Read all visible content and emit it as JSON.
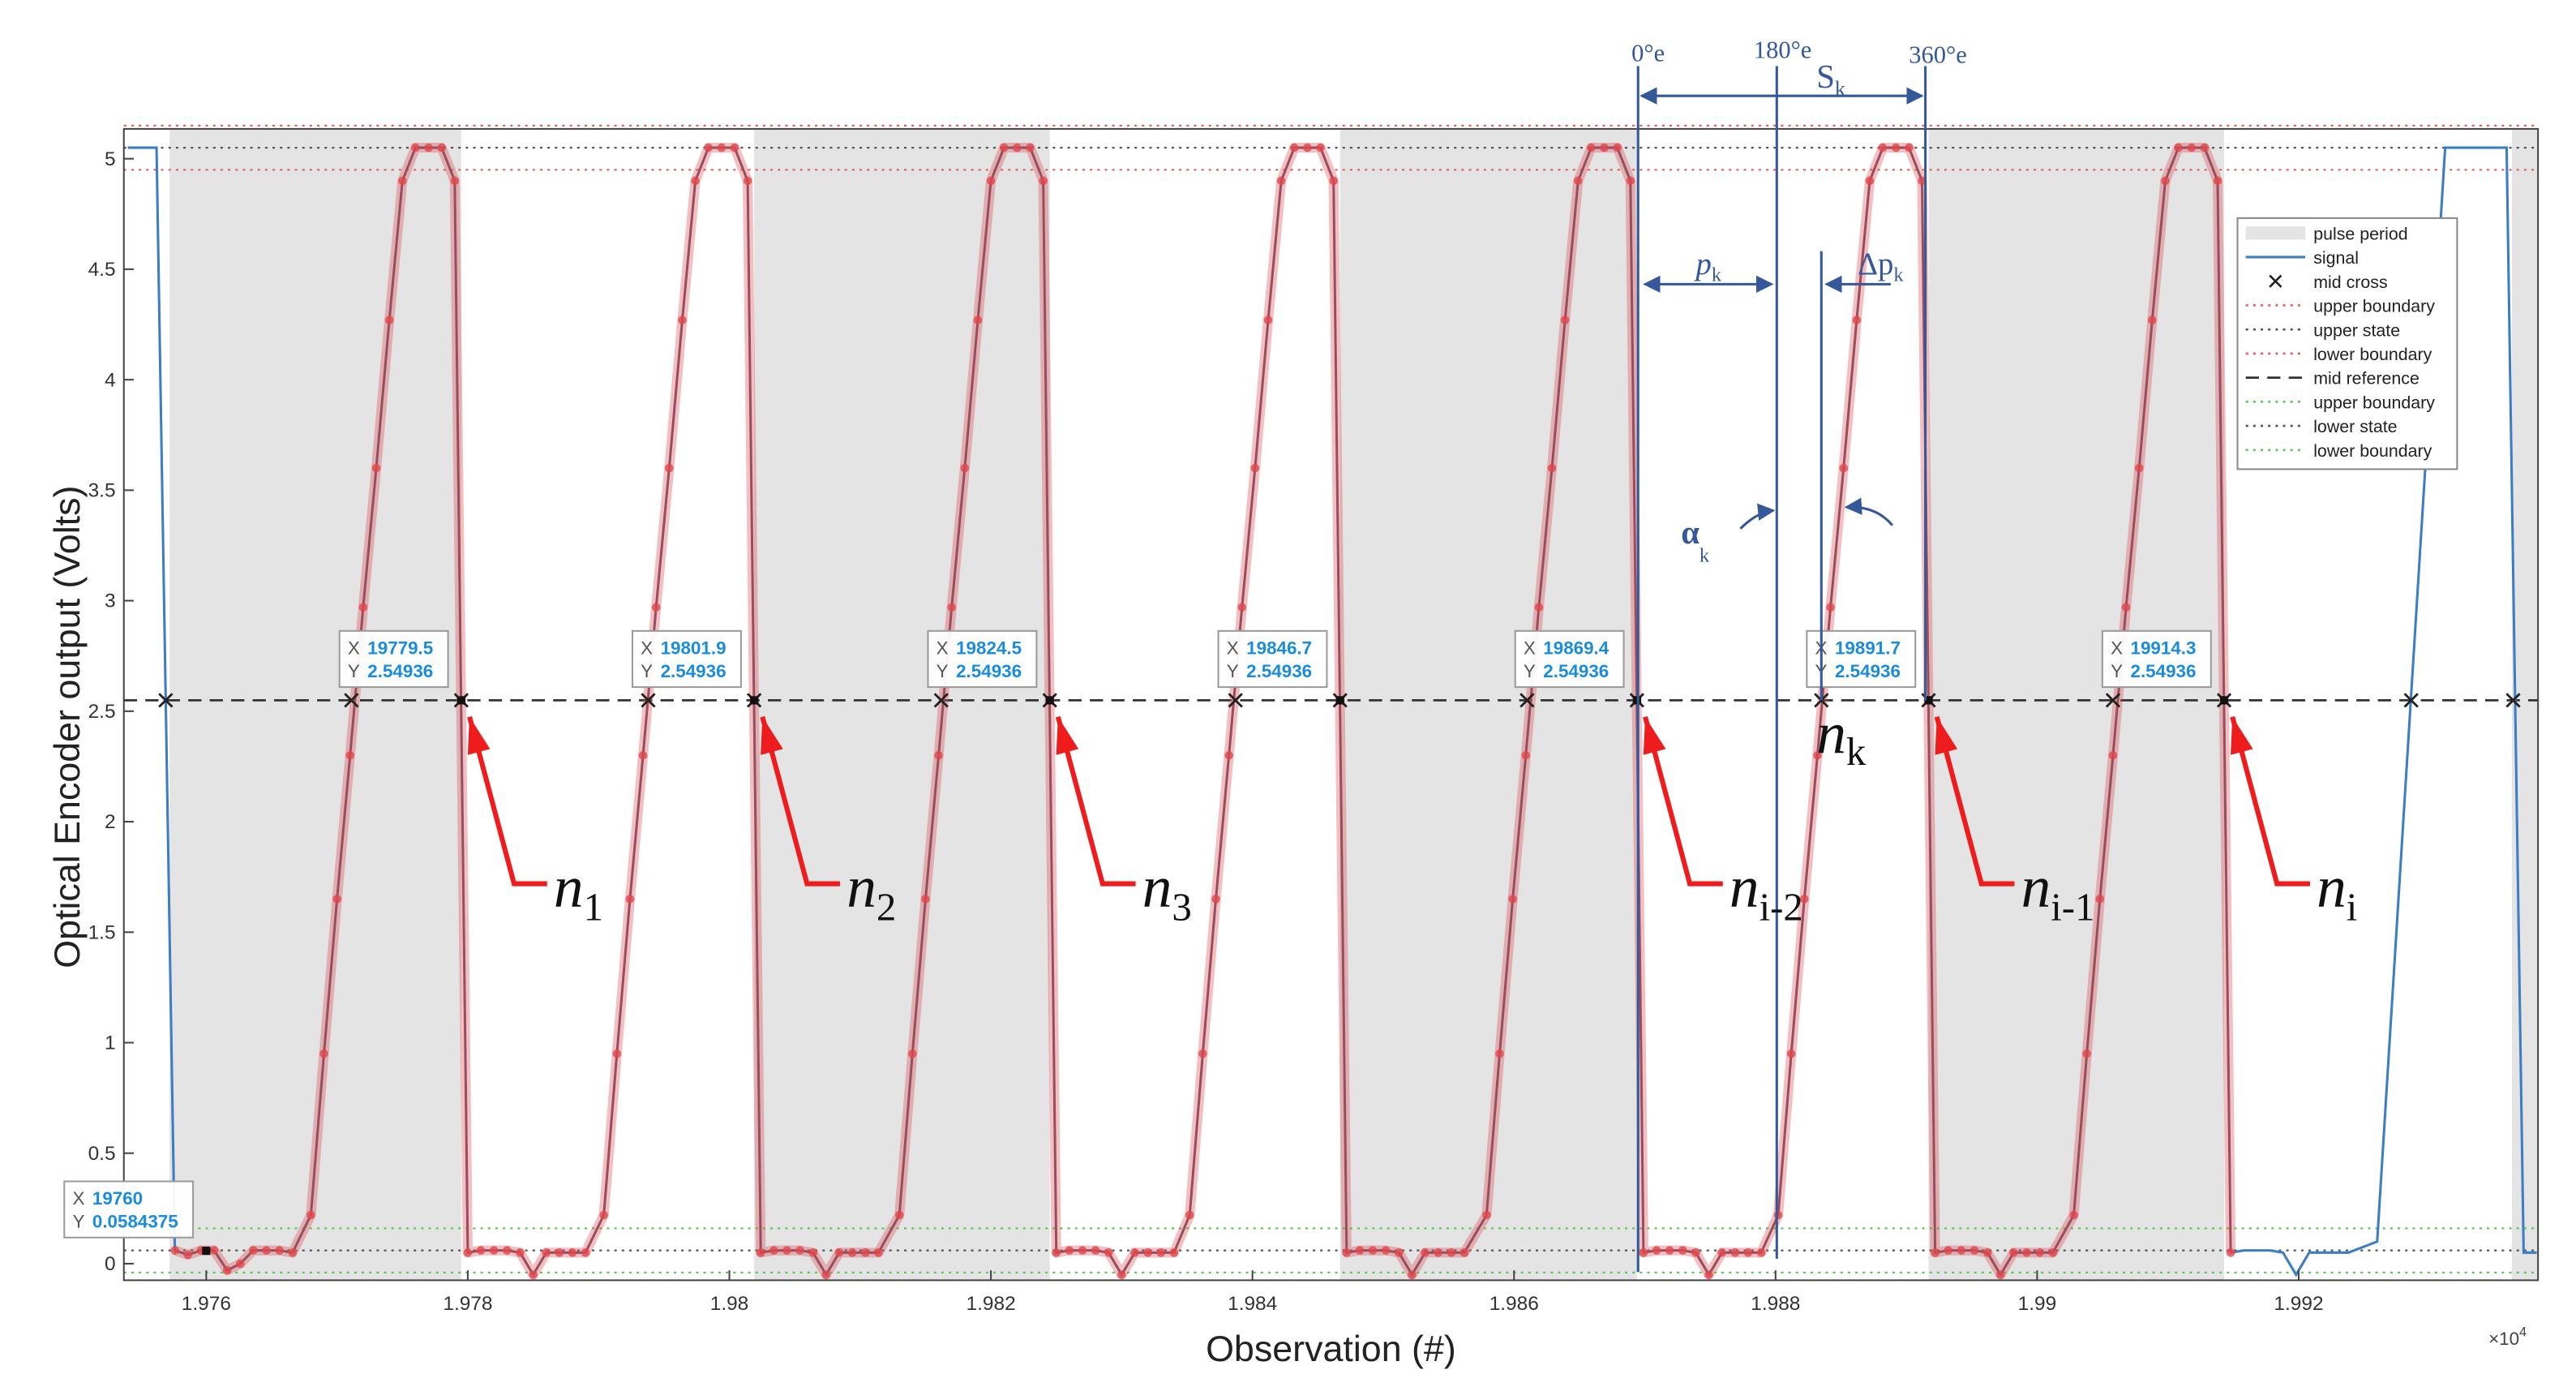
{
  "chart_data": {
    "type": "line",
    "x_label": "Observation (#)",
    "y_label": "Optical Encoder output (Volts)",
    "x_multiplier": {
      "base": "×10",
      "sup": "4"
    },
    "xlim": [
      19753.7,
      19938.3
    ],
    "ylim": [
      -0.075,
      5.135
    ],
    "xticks": [
      {
        "value": 19760,
        "label": "1.976"
      },
      {
        "value": 19780,
        "label": "1.978"
      },
      {
        "value": 19800,
        "label": "1.98"
      },
      {
        "value": 19820,
        "label": "1.982"
      },
      {
        "value": 19840,
        "label": "1.984"
      },
      {
        "value": 19860,
        "label": "1.986"
      },
      {
        "value": 19880,
        "label": "1.988"
      },
      {
        "value": 19900,
        "label": "1.99"
      },
      {
        "value": 19920,
        "label": "1.992"
      }
    ],
    "yticks": [
      0,
      0.5,
      1,
      1.5,
      2,
      2.5,
      3,
      3.5,
      4,
      4.5,
      5
    ],
    "grid": false,
    "legend": "upper right",
    "pulse_periods": {
      "name": "pulse period",
      "color": "#e4e4e4",
      "spans": [
        [
          19757.2,
          19779.5
        ],
        [
          19801.9,
          19824.5
        ],
        [
          19846.7,
          19869.4
        ],
        [
          19891.7,
          19914.3
        ],
        [
          19936.3,
          19938.3
        ]
      ]
    },
    "series": [
      {
        "name": "signal",
        "color": "#3c7dc4",
        "highlight_color": "#e0474c",
        "x": [
          19754.0,
          19756.2,
          19757.6,
          19758.6,
          19759.6,
          19760.6,
          19761.6,
          19762.6,
          19763.6,
          19764.6,
          19765.6,
          19766.6,
          19768,
          19769,
          19770,
          19771,
          19772,
          19773,
          19774,
          19775,
          19776,
          19777,
          19778,
          19779,
          19780,
          19781,
          19782,
          19783,
          19784,
          19785,
          19786,
          19787,
          19788,
          19789,
          19790.4,
          19791.4,
          19792.4,
          19793.4,
          19794.4,
          19795.4,
          19796.4,
          19797.4,
          19798.4,
          19799.4,
          19800.4,
          19801.4,
          19802.4,
          19803.4,
          19804.4,
          19805.4,
          19806.4,
          19807.4,
          19808.4,
          19809.4,
          19810.4,
          19811.4,
          19813,
          19814,
          19815,
          19816,
          19817,
          19818,
          19819,
          19820,
          19821,
          19822,
          19823,
          19824,
          19825,
          19826,
          19827,
          19828,
          19829,
          19830,
          19831,
          19832,
          19833,
          19834,
          19835.2,
          19836.2,
          19837.2,
          19838.2,
          19839.2,
          19840.2,
          19841.2,
          19842.2,
          19843.2,
          19844.2,
          19845.2,
          19846.2,
          19847.2,
          19848.2,
          19849.2,
          19850.2,
          19851.2,
          19852.2,
          19853.2,
          19854.2,
          19855.2,
          19856.2,
          19857.9,
          19858.9,
          19859.9,
          19860.9,
          19861.9,
          19862.9,
          19863.9,
          19864.9,
          19865.9,
          19866.9,
          19867.9,
          19868.9,
          19869.9,
          19870.9,
          19871.9,
          19872.9,
          19873.9,
          19874.9,
          19875.9,
          19876.9,
          19877.9,
          19878.9,
          19880.2,
          19881.2,
          19882.2,
          19883.2,
          19884.2,
          19885.2,
          19886.2,
          19887.2,
          19888.2,
          19889.2,
          19890.2,
          19891.2,
          19892.2,
          19893.2,
          19894.2,
          19895.2,
          19896.2,
          19897.2,
          19898.2,
          19899.2,
          19900.2,
          19901.2,
          19902.8,
          19903.8,
          19904.8,
          19905.8,
          19906.8,
          19907.8,
          19908.8,
          19909.8,
          19910.8,
          19911.8,
          19912.8,
          19913.8,
          19914.8,
          19915.8,
          19916.8,
          19917.8,
          19918.8,
          19919.8,
          19920.8,
          19921.8,
          19922.8,
          19923.8,
          19926.0,
          19931.2,
          19935.9,
          19937.2,
          19938.2
        ],
        "values": [
          5.05,
          5.05,
          0.06,
          0.04,
          0.06,
          0.06,
          -0.03,
          0.0,
          0.06,
          0.06,
          0.06,
          0.05,
          0.22,
          0.95,
          1.65,
          2.3,
          2.97,
          3.6,
          4.27,
          4.9,
          5.05,
          5.05,
          5.05,
          4.9,
          0.05,
          0.06,
          0.06,
          0.06,
          0.05,
          -0.05,
          0.05,
          0.05,
          0.05,
          0.05,
          0.22,
          0.95,
          1.65,
          2.3,
          2.97,
          3.6,
          4.27,
          4.9,
          5.05,
          5.05,
          5.05,
          4.9,
          0.05,
          0.06,
          0.06,
          0.06,
          0.05,
          -0.05,
          0.05,
          0.05,
          0.05,
          0.05,
          0.22,
          0.95,
          1.65,
          2.3,
          2.97,
          3.6,
          4.27,
          4.9,
          5.05,
          5.05,
          5.05,
          4.9,
          0.05,
          0.06,
          0.06,
          0.06,
          0.05,
          -0.05,
          0.05,
          0.05,
          0.05,
          0.05,
          0.22,
          0.95,
          1.65,
          2.3,
          2.97,
          3.6,
          4.27,
          4.9,
          5.05,
          5.05,
          5.05,
          4.9,
          0.05,
          0.06,
          0.06,
          0.06,
          0.05,
          -0.05,
          0.05,
          0.05,
          0.05,
          0.05,
          0.22,
          0.95,
          1.65,
          2.3,
          2.97,
          3.6,
          4.27,
          4.9,
          5.05,
          5.05,
          5.05,
          4.9,
          0.05,
          0.06,
          0.06,
          0.06,
          0.05,
          -0.05,
          0.05,
          0.05,
          0.05,
          0.05,
          0.22,
          0.95,
          1.65,
          2.3,
          2.97,
          3.6,
          4.27,
          4.9,
          5.05,
          5.05,
          5.05,
          4.9,
          0.05,
          0.06,
          0.06,
          0.06,
          0.05,
          -0.05,
          0.05,
          0.05,
          0.05,
          0.05,
          0.22,
          0.95,
          1.65,
          2.3,
          2.97,
          3.6,
          4.27,
          4.9,
          5.05,
          5.05,
          5.05,
          4.9,
          0.05,
          0.06,
          0.06,
          0.06,
          0.05,
          -0.05,
          0.05,
          0.05,
          0.05,
          0.05,
          0.1,
          5.05,
          5.05,
          0.05,
          0.05
        ]
      }
    ],
    "mid_crosses": {
      "name": "mid cross",
      "x": [
        19756.9,
        19771.1,
        19779.5,
        19793.8,
        19801.9,
        19816.2,
        19824.5,
        19838.7,
        19846.7,
        19861.0,
        19869.4,
        19883.5,
        19891.7,
        19905.8,
        19914.3,
        19928.6,
        19936.4
      ]
    },
    "reference_lines": [
      {
        "name": "upper boundary",
        "value": 5.15,
        "color": "#e06060",
        "dash": "dotted"
      },
      {
        "name": "upper state",
        "value": 5.05,
        "color": "#555555",
        "dash": "dotted"
      },
      {
        "name": "lower boundary",
        "value": 4.95,
        "color": "#e06060",
        "dash": "dotted"
      },
      {
        "name": "mid reference",
        "value": 2.54936,
        "color": "#333333",
        "dash": "dashed"
      },
      {
        "name": "upper boundary",
        "value": 0.16,
        "color": "#5cc85c",
        "dash": "dotted"
      },
      {
        "name": "lower state",
        "value": 0.06,
        "color": "#555555",
        "dash": "dotted"
      },
      {
        "name": "lower boundary",
        "value": -0.04,
        "color": "#5cc85c",
        "dash": "dotted"
      }
    ],
    "datatip_labels": [
      "X",
      "Y"
    ],
    "datatips": [
      {
        "x": 19760,
        "y": 0.0584375
      },
      {
        "x": 19779.5,
        "y": 2.54936
      },
      {
        "x": 19801.9,
        "y": 2.54936
      },
      {
        "x": 19824.5,
        "y": 2.54936
      },
      {
        "x": 19846.7,
        "y": 2.54936
      },
      {
        "x": 19869.4,
        "y": 2.54936
      },
      {
        "x": 19891.7,
        "y": 2.54936
      },
      {
        "x": 19914.3,
        "y": 2.54936
      }
    ],
    "crossing_labels": [
      {
        "base": "n",
        "sub": "1"
      },
      {
        "base": "n",
        "sub": "2"
      },
      {
        "base": "n",
        "sub": "3"
      },
      {
        "base": "n",
        "sub": "i-2"
      },
      {
        "base": "n",
        "sub": "i-1"
      },
      {
        "base": "n",
        "sub": "i"
      }
    ],
    "nk_label": {
      "base": "n",
      "sub": "k"
    },
    "angle_labels": [
      "0°e",
      "180°e",
      "360°e"
    ],
    "sk_label": {
      "base": "S",
      "sub": "k"
    },
    "pk_label": {
      "base": "p",
      "sub": "k"
    },
    "dpk_label": {
      "base": "Δp",
      "sub": "k"
    },
    "alpha_label": {
      "base": "α",
      "sub": "k"
    }
  }
}
